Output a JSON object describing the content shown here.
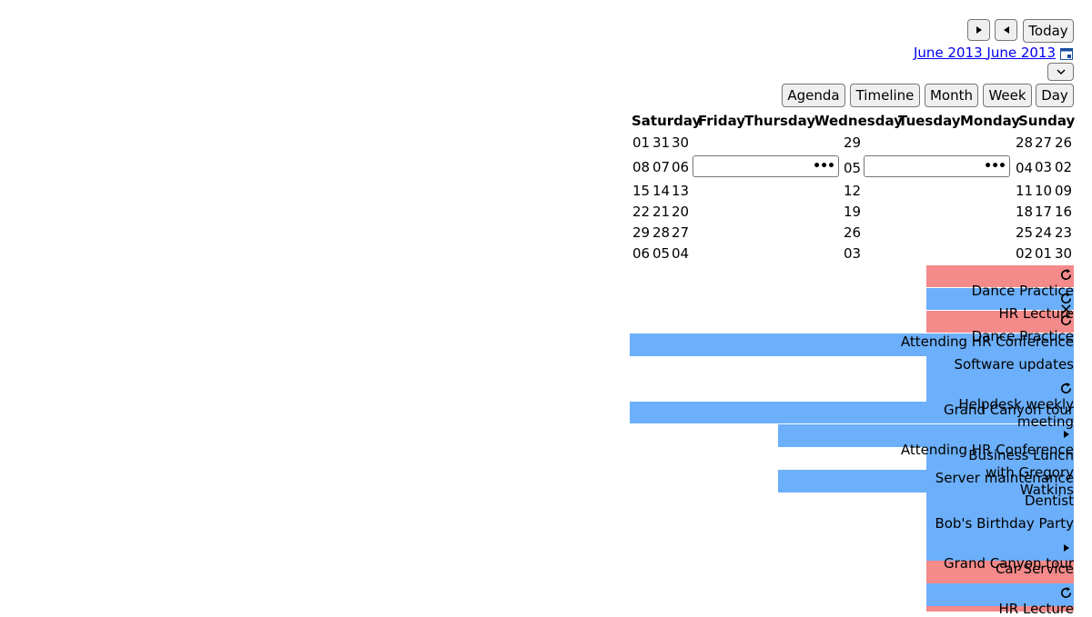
{
  "toolbar": {
    "next_icon": "triangle-right-icon",
    "prev_icon": "triangle-left-icon",
    "today_label": "Today",
    "range_start": "June 2013",
    "range_end": "June 2013",
    "calendar_icon": "calendar-icon",
    "toggle_icon": "chevron-down-icon"
  },
  "views": [
    "Agenda",
    "Timeline",
    "Month",
    "Week",
    "Day"
  ],
  "days_of_week": [
    "Saturday",
    "Friday",
    "Thursday",
    "Wednesday",
    "Tuesday",
    "Monday",
    "Sunday"
  ],
  "weeks": [
    [
      "01",
      "31",
      "30",
      "29",
      "28",
      "27",
      "26"
    ],
    [
      "08",
      "07",
      "06",
      "05",
      "04",
      "03",
      "02"
    ],
    [
      "15",
      "14",
      "13",
      "12",
      "11",
      "10",
      "09"
    ],
    [
      "22",
      "21",
      "20",
      "19",
      "18",
      "17",
      "16"
    ],
    [
      "29",
      "28",
      "27",
      "26",
      "25",
      "24",
      "23"
    ],
    [
      "06",
      "05",
      "04",
      "03",
      "02",
      "01",
      "30"
    ]
  ],
  "more_indicator": "•••",
  "events": [
    "Dance Practice",
    "HR Lecture",
    "Dance Practice",
    "Attending HR Conference",
    "Software updates",
    "Helpdesk weekly meeting",
    "Grand Canyon tour",
    "Attending HR Conference",
    "Business Lunch with Gregory Watkins",
    "Server maintenance",
    "Dentist",
    "Bob's Birthday Party",
    "Grand Canyon tour",
    "Car Service",
    "HR Lecture"
  ],
  "colors": {
    "pink": "#f48a8a",
    "blue": "#6caffa",
    "link": "#0000ee"
  }
}
